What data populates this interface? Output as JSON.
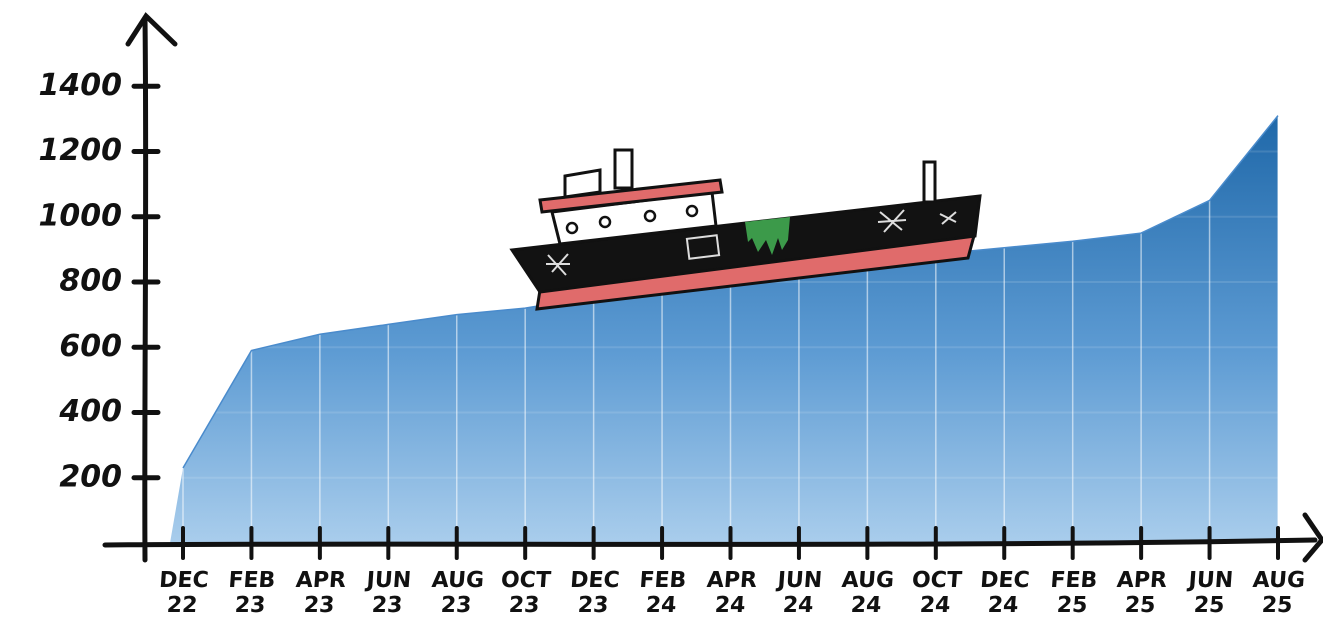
{
  "chart_data": {
    "type": "area",
    "categories": [
      "DEC 22",
      "FEB 23",
      "APR 23",
      "JUN 23",
      "AUG 23",
      "OCT 23",
      "DEC 23",
      "FEB 24",
      "APR 24",
      "JUN 24",
      "AUG 24",
      "OCT 24",
      "DEC 24",
      "FEB 25",
      "APR 25",
      "JUN 25",
      "AUG 25"
    ],
    "values": [
      230,
      590,
      640,
      670,
      700,
      720,
      755,
      785,
      820,
      845,
      870,
      885,
      905,
      925,
      950,
      1050,
      1310
    ],
    "ylim": [
      0,
      1600
    ],
    "yticks": [
      200,
      400,
      600,
      800,
      1000,
      1200,
      1400
    ],
    "color": "#4a8bcc",
    "grid": true
  }
}
